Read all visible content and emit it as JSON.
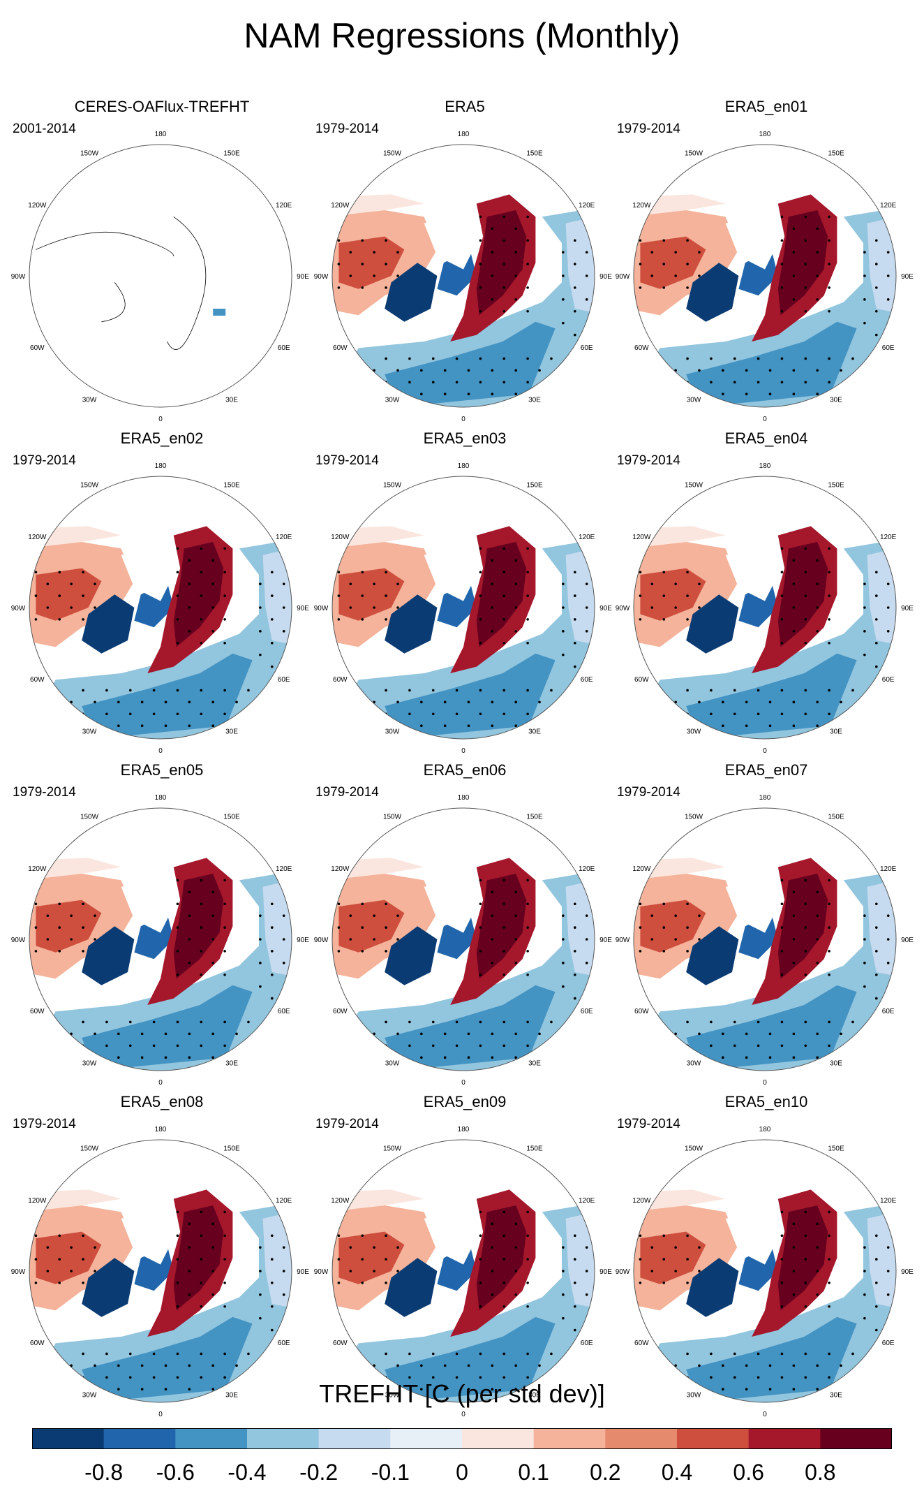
{
  "title": "NAM Regressions (Monthly)",
  "colorbar": {
    "title": "TREFHT [C (per std dev)]",
    "colors": [
      "#0b3b73",
      "#2166ac",
      "#4393c3",
      "#92c5de",
      "#c6dbef",
      "#e7eff7",
      "#fbe6df",
      "#f4b39a",
      "#e58a6d",
      "#cf4f3f",
      "#a5172b",
      "#67001f"
    ],
    "tick_labels": [
      "-0.8",
      "-0.6",
      "-0.4",
      "-0.2",
      "-0.1",
      "0",
      "0.1",
      "0.2",
      "0.4",
      "0.6",
      "0.8"
    ]
  },
  "longitude_labels": [
    "180",
    "150E",
    "120E",
    "90E",
    "60E",
    "30E",
    "0",
    "30W",
    "60W",
    "90W",
    "120W",
    "150W"
  ],
  "chart_data": {
    "type": "map",
    "projection": "north polar stereographic",
    "variable": "TREFHT",
    "units": "C (per std dev)",
    "panels": [
      {
        "title": "CERES-OAFlux-TREFHT",
        "period": "2001-2014",
        "has_data": false
      },
      {
        "title": "ERA5",
        "period": "1979-2014",
        "has_data": true
      },
      {
        "title": "ERA5_en01",
        "period": "1979-2014",
        "has_data": true
      },
      {
        "title": "ERA5_en02",
        "period": "1979-2014",
        "has_data": true
      },
      {
        "title": "ERA5_en03",
        "period": "1979-2014",
        "has_data": true
      },
      {
        "title": "ERA5_en04",
        "period": "1979-2014",
        "has_data": true
      },
      {
        "title": "ERA5_en05",
        "period": "1979-2014",
        "has_data": true
      },
      {
        "title": "ERA5_en06",
        "period": "1979-2014",
        "has_data": true
      },
      {
        "title": "ERA5_en07",
        "period": "1979-2014",
        "has_data": true
      },
      {
        "title": "ERA5_en08",
        "period": "1979-2014",
        "has_data": true
      },
      {
        "title": "ERA5_en09",
        "period": "1979-2014",
        "has_data": true
      },
      {
        "title": "ERA5_en10",
        "period": "1979-2014",
        "has_data": true
      }
    ]
  }
}
